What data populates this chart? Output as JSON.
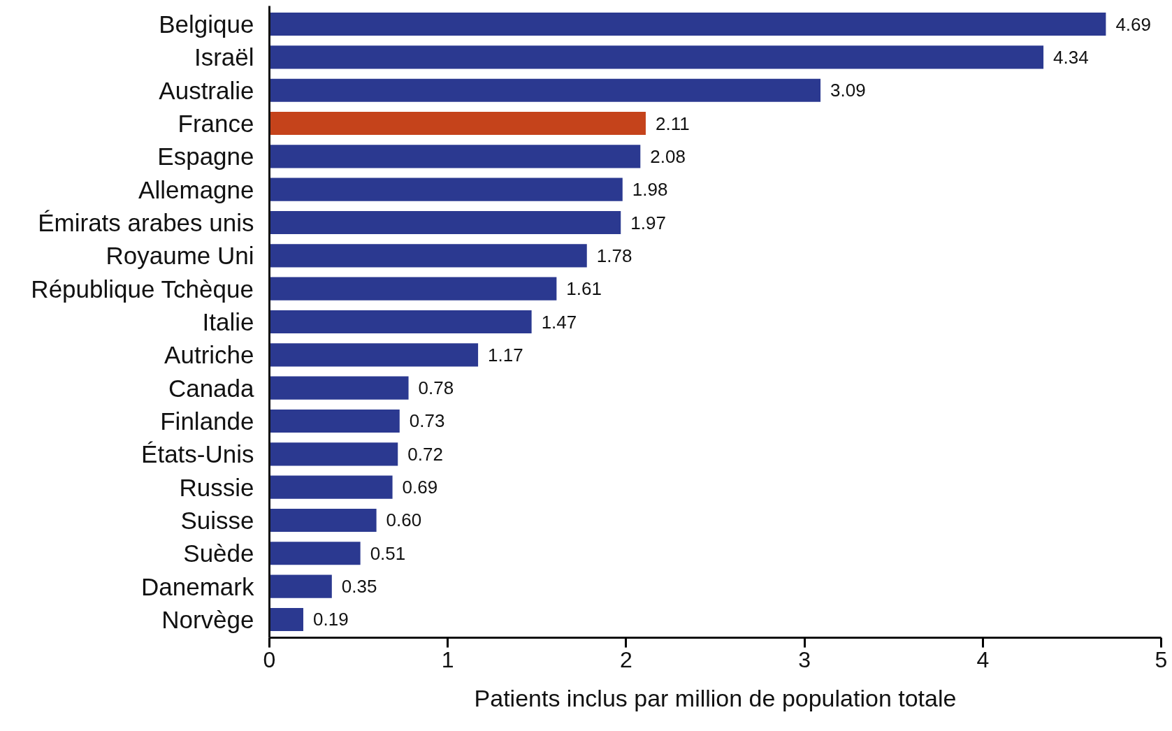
{
  "chart_data": {
    "type": "bar",
    "orientation": "horizontal",
    "xlabel": "Patients inclus par million de population totale",
    "categories": [
      "Belgique",
      "Israël",
      "Australie",
      "France",
      "Espagne",
      "Allemagne",
      "Émirats arabes unis",
      "Royaume Uni",
      "République Tchèque",
      "Italie",
      "Autriche",
      "Canada",
      "Finlande",
      "États-Unis",
      "Russie",
      "Suisse",
      "Suède",
      "Danemark",
      "Norvège"
    ],
    "values": [
      4.69,
      4.34,
      3.09,
      2.11,
      2.08,
      1.98,
      1.97,
      1.78,
      1.61,
      1.47,
      1.17,
      0.78,
      0.73,
      0.72,
      0.69,
      0.6,
      0.51,
      0.35,
      0.19
    ],
    "value_labels": [
      "4.69",
      "4.34",
      "3.09",
      "2.11",
      "2.08",
      "1.98",
      "1.97",
      "1.78",
      "1.61",
      "1.47",
      "1.17",
      "0.78",
      "0.73",
      "0.72",
      "0.69",
      "0.60",
      "0.51",
      "0.35",
      "0.19"
    ],
    "colors": [
      "#2b3990",
      "#2b3990",
      "#2b3990",
      "#c5431b",
      "#2b3990",
      "#2b3990",
      "#2b3990",
      "#2b3990",
      "#2b3990",
      "#2b3990",
      "#2b3990",
      "#2b3990",
      "#2b3990",
      "#2b3990",
      "#2b3990",
      "#2b3990",
      "#2b3990",
      "#2b3990",
      "#2b3990"
    ],
    "xlim": [
      0,
      5
    ],
    "xticks": [
      0,
      1,
      2,
      3,
      4,
      5
    ],
    "grid": false
  }
}
